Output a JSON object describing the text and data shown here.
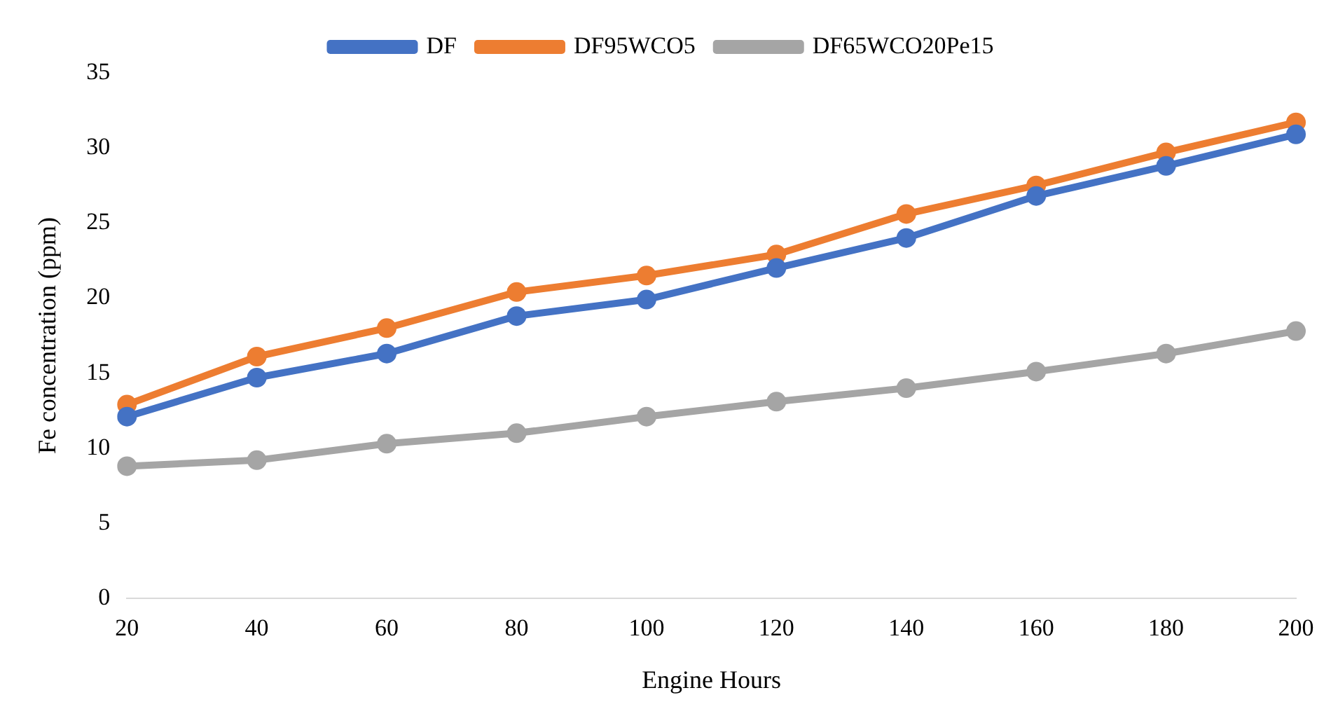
{
  "chart_data": {
    "type": "line",
    "xlabel": "Engine Hours",
    "ylabel": "Fe concentration (ppm)",
    "categories": [
      "20",
      "40",
      "60",
      "80",
      "100",
      "120",
      "140",
      "160",
      "180",
      "200"
    ],
    "series": [
      {
        "name": "DF",
        "color": "#4472c4",
        "values": [
          12.1,
          14.7,
          16.3,
          18.8,
          19.9,
          22.0,
          24.0,
          26.8,
          28.8,
          30.9
        ]
      },
      {
        "name": "DF95WCO5",
        "color": "#ed7d31",
        "values": [
          12.9,
          16.1,
          18.0,
          20.4,
          21.5,
          22.9,
          25.6,
          27.5,
          29.7,
          31.7
        ]
      },
      {
        "name": "DF65WCO20Pe15",
        "color": "#a5a5a5",
        "values": [
          8.8,
          9.2,
          10.3,
          11.0,
          12.1,
          13.1,
          14.0,
          15.1,
          16.3,
          17.8
        ]
      }
    ],
    "ylim": [
      0,
      35
    ],
    "yticks": [
      0,
      5,
      10,
      15,
      20,
      25,
      30,
      35
    ],
    "grid": false,
    "legend": "top",
    "marker": "circle",
    "line_style": "solid"
  }
}
